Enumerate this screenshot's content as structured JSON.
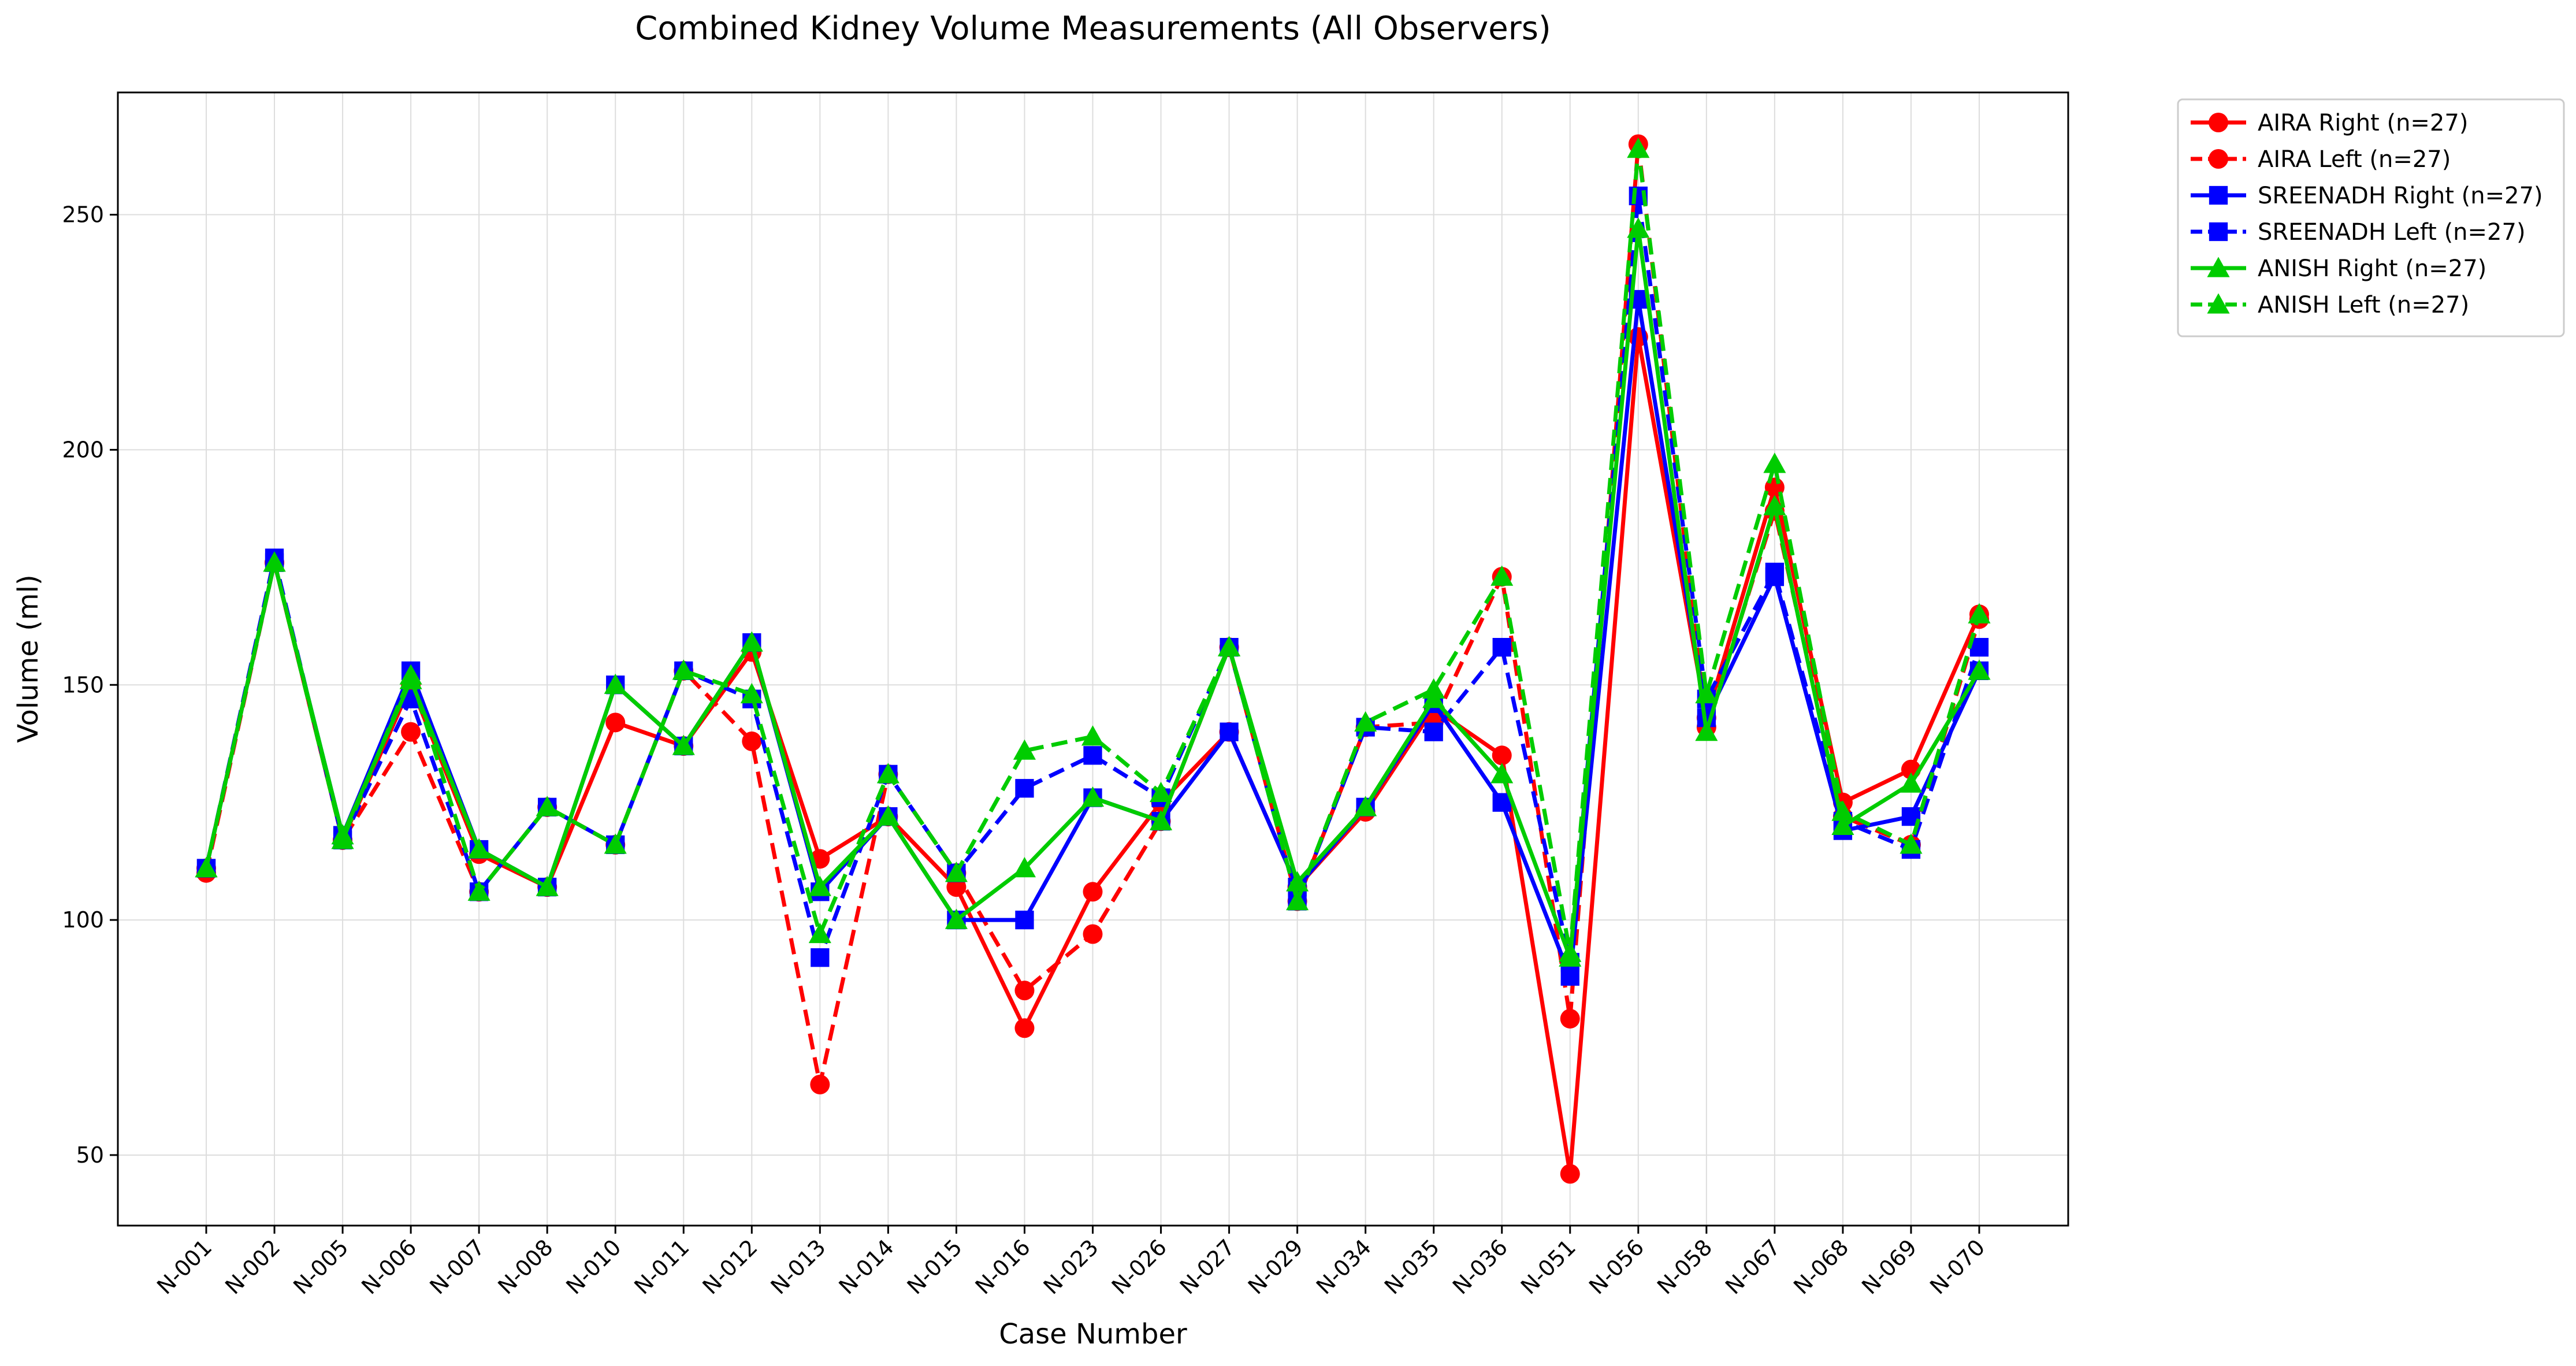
{
  "chart_data": {
    "type": "line",
    "title": "Combined Kidney Volume Measurements (All Observers)",
    "xlabel": "Case Number",
    "ylabel": "Volume (ml)",
    "ylim": [
      35,
      276
    ],
    "yticks": [
      50,
      100,
      150,
      200,
      250
    ],
    "grid": true,
    "legend_position": "outside-top-right",
    "categories": [
      "N-001",
      "N-002",
      "N-005",
      "N-006",
      "N-007",
      "N-008",
      "N-010",
      "N-011",
      "N-012",
      "N-013",
      "N-014",
      "N-015",
      "N-016",
      "N-023",
      "N-026",
      "N-027",
      "N-029",
      "N-034",
      "N-035",
      "N-036",
      "N-051",
      "N-056",
      "N-058",
      "N-067",
      "N-068",
      "N-069",
      "N-070"
    ],
    "series": [
      {
        "name": "AIRA Right (n=27)",
        "color": "#ff0000",
        "marker": "circle",
        "dashed": false,
        "values": [
          111,
          176,
          117,
          150,
          114,
          107,
          142,
          137,
          157,
          113,
          122,
          107,
          77,
          106,
          125,
          140,
          107,
          123,
          145,
          135,
          46,
          224,
          143,
          192,
          125,
          132,
          165
        ]
      },
      {
        "name": "AIRA Left (n=27)",
        "color": "#ff0000",
        "marker": "circle",
        "dashed": true,
        "values": [
          110,
          176,
          117,
          140,
          106,
          124,
          116,
          153,
          138,
          65,
          131,
          110,
          85,
          97,
          121,
          158,
          104,
          141,
          142,
          173,
          79,
          265,
          141,
          187,
          122,
          116,
          164
        ]
      },
      {
        "name": "SREENADH Right (n=27)",
        "color": "#0000ff",
        "marker": "square",
        "dashed": false,
        "values": [
          111,
          176,
          118,
          153,
          115,
          107,
          150,
          137,
          159,
          106,
          122,
          100,
          100,
          126,
          121,
          140,
          107,
          124,
          146,
          125,
          88,
          232,
          143,
          173,
          119,
          122,
          153
        ]
      },
      {
        "name": "SREENADH Left (n=27)",
        "color": "#0000ff",
        "marker": "square",
        "dashed": true,
        "values": [
          111,
          177,
          117,
          147,
          106,
          124,
          116,
          153,
          147,
          92,
          131,
          110,
          128,
          135,
          126,
          158,
          104,
          141,
          140,
          158,
          91,
          254,
          147,
          174,
          121,
          115,
          158
        ]
      },
      {
        "name": "ANISH Right (n=27)",
        "color": "#00cc00",
        "marker": "triangle",
        "dashed": false,
        "values": [
          111,
          176,
          118,
          151,
          115,
          107,
          150,
          137,
          159,
          107,
          122,
          100,
          111,
          126,
          121,
          158,
          108,
          124,
          147,
          131,
          92,
          247,
          140,
          188,
          120,
          129,
          153
        ]
      },
      {
        "name": "ANISH Left (n=27)",
        "color": "#00cc00",
        "marker": "triangle",
        "dashed": true,
        "values": [
          111,
          176,
          117,
          152,
          106,
          124,
          116,
          153,
          148,
          97,
          131,
          110,
          136,
          139,
          127,
          158,
          104,
          142,
          149,
          173,
          93,
          264,
          148,
          197,
          123,
          116,
          165
        ]
      }
    ]
  }
}
